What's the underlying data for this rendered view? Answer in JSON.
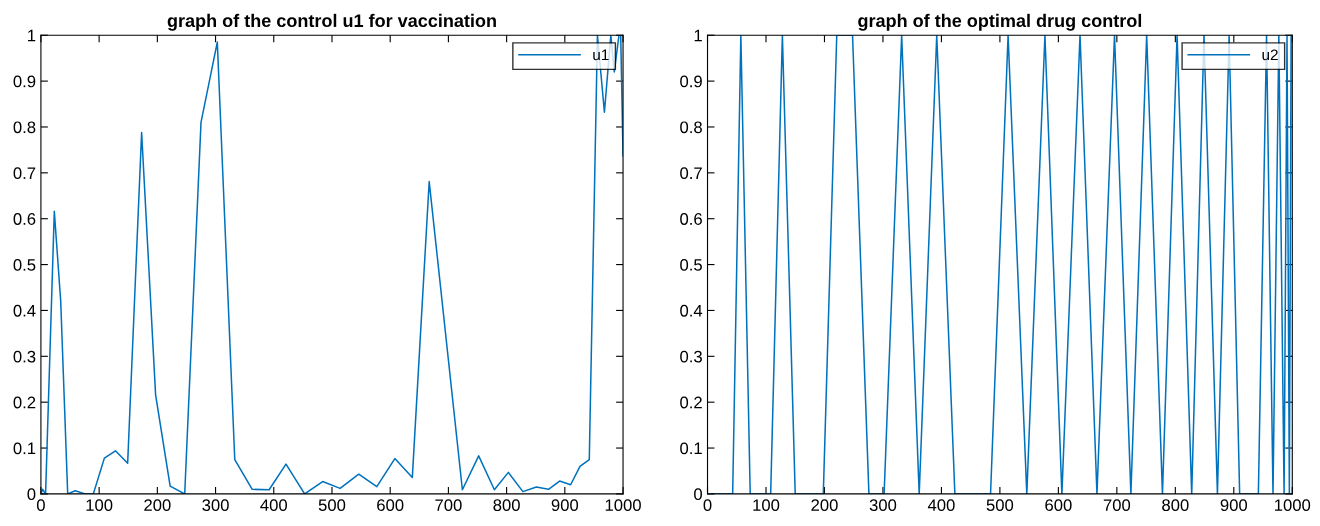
{
  "chart_data": [
    {
      "type": "line",
      "title": "graph of the control u1 for vaccination",
      "xlim": [
        0,
        1000
      ],
      "ylim": [
        0,
        1
      ],
      "xticks": [
        0,
        100,
        200,
        300,
        400,
        500,
        600,
        700,
        800,
        900,
        1000
      ],
      "yticks": [
        0,
        0.1,
        0.2,
        0.3,
        0.4,
        0.5,
        0.6,
        0.7,
        0.8,
        0.9,
        1
      ],
      "grid": false,
      "legend": "top right",
      "series": [
        {
          "name": "u1",
          "color": "#0072bd",
          "x": [
            0,
            3,
            8,
            23,
            34,
            46,
            59,
            76,
            90,
            109,
            128,
            149,
            173,
            197,
            222,
            247,
            275,
            303,
            333,
            363,
            392,
            421,
            453,
            484,
            514,
            546,
            577,
            608,
            638,
            667,
            724,
            752,
            779,
            803,
            828,
            851,
            872,
            891,
            910,
            926,
            942,
            956,
            968,
            979,
            985,
            993,
            996,
            1000
          ],
          "values": [
            0,
            0.01,
            0,
            0.616,
            0.42,
            0,
            0.007,
            0,
            0,
            0.078,
            0.094,
            0.067,
            0.788,
            0.216,
            0.017,
            0,
            0.81,
            0.985,
            0.075,
            0.01,
            0.009,
            0.065,
            0,
            0.027,
            0.012,
            0.043,
            0.016,
            0.077,
            0.036,
            0.681,
            0.009,
            0.083,
            0.009,
            0.047,
            0.005,
            0.015,
            0.01,
            0.028,
            0.02,
            0.06,
            0.075,
            1,
            0.832,
            1,
            0.92,
            1,
            1,
            0.737
          ]
        }
      ]
    },
    {
      "type": "line",
      "title": "graph of the optimal drug control",
      "xlim": [
        0,
        1000
      ],
      "ylim": [
        0,
        1
      ],
      "xticks": [
        0,
        100,
        200,
        300,
        400,
        500,
        600,
        700,
        800,
        900,
        1000
      ],
      "yticks": [
        0,
        0.1,
        0.2,
        0.3,
        0.4,
        0.5,
        0.6,
        0.7,
        0.8,
        0.9,
        1
      ],
      "grid": false,
      "legend": "top right",
      "series": [
        {
          "name": "u2",
          "color": "#0072bd",
          "x": [
            0,
            43,
            57,
            73,
            108,
            128,
            150,
            198,
            221,
            248,
            276,
            302,
            332,
            362,
            392,
            423,
            484,
            514,
            546,
            577,
            606,
            637,
            666,
            696,
            724,
            751,
            778,
            803,
            828,
            849,
            872,
            892,
            910,
            942,
            956,
            967,
            977,
            986,
            991,
            995,
            998,
            1000
          ],
          "values": [
            0,
            0,
            1,
            0,
            0,
            1,
            0,
            0,
            1,
            1,
            0,
            0,
            1,
            0,
            1,
            0,
            0,
            1,
            0,
            1,
            0,
            1,
            0,
            1,
            0,
            1,
            0,
            1,
            0,
            1,
            0,
            1,
            0,
            0,
            1,
            0,
            1,
            0,
            1,
            0,
            1,
            1
          ]
        }
      ]
    }
  ]
}
